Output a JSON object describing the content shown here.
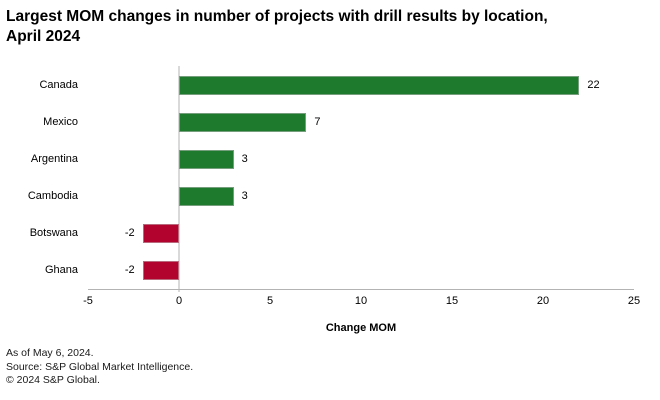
{
  "title": {
    "line1": "Largest MOM changes in number of projects with drill results by location,",
    "line2": "April 2024"
  },
  "chart_data": {
    "type": "bar",
    "orientation": "horizontal",
    "categories": [
      "Canada",
      "Mexico",
      "Argentina",
      "Cambodia",
      "Botswana",
      "Ghana"
    ],
    "values": [
      22,
      7,
      3,
      3,
      -2,
      -2
    ],
    "value_labels": [
      "22",
      "7",
      "3",
      "3",
      "-2",
      "-2"
    ],
    "xlabel": "Change MOM",
    "xlim": [
      -5,
      25
    ],
    "xticks": [
      -5,
      0,
      5,
      10,
      15,
      20,
      25
    ],
    "positive_color": "#1e7b2e",
    "negative_color": "#b1032e",
    "zero_line_color": "#d9d9d9",
    "axis_line_color": "#b3b3b3",
    "legend": "none",
    "grid": "zero-line-only"
  },
  "footer": {
    "line1": "As of May 6, 2024.",
    "line2": "Source: S&P Global Market Intelligence.",
    "line3": "© 2024 S&P Global."
  }
}
